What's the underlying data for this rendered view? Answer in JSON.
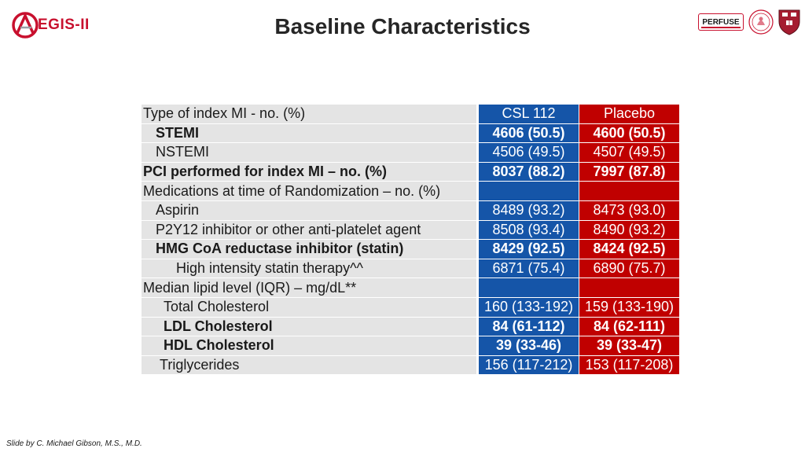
{
  "header": {
    "title": "Baseline Characteristics",
    "logo_left_text": "EGIS-II",
    "logo_perfuse_text": "PERFUSE"
  },
  "table": {
    "columns": [
      "CSL 112",
      "Placebo"
    ],
    "rows": [
      {
        "label": "Type of index MI - no. (%)",
        "csl": "",
        "placebo": ""
      },
      {
        "label": "STEMI",
        "csl": "4606 (50.5)",
        "placebo": "4600 (50.5)"
      },
      {
        "label": "NSTEMI",
        "csl": "4506 (49.5)",
        "placebo": "4507 (49.5)"
      },
      {
        "label": "PCI performed for index MI – no. (%)",
        "csl": "8037 (88.2)",
        "placebo": "7997 (87.8)"
      },
      {
        "label": "Medications at time of Randomization – no. (%)",
        "csl": "",
        "placebo": ""
      },
      {
        "label": "Aspirin",
        "csl": "8489 (93.2)",
        "placebo": "8473 (93.0)"
      },
      {
        "label": "P2Y12 inhibitor or other anti-platelet agent",
        "csl": "8508 (93.4)",
        "placebo": "8490 (93.2)"
      },
      {
        "label": "HMG CoA reductase inhibitor (statin)",
        "csl": "8429 (92.5)",
        "placebo": "8424 (92.5)"
      },
      {
        "label": "High intensity statin therapy^^",
        "csl": "6871 (75.4)",
        "placebo": "6890 (75.7)"
      },
      {
        "label": "Median lipid level (IQR) –  mg/dL**",
        "csl": "",
        "placebo": ""
      },
      {
        "label": "Total Cholesterol",
        "csl": "160 (133-192)",
        "placebo": "159 (133-190)"
      },
      {
        "label": "LDL Cholesterol",
        "csl": "84 (61-112)",
        "placebo": "84 (62-111)"
      },
      {
        "label": "HDL Cholesterol",
        "csl": "39 (33-46)",
        "placebo": "39 (33-47)"
      },
      {
        "label": "Triglycerides",
        "csl": "156 (117-212)",
        "placebo": "153 (117-208)"
      }
    ]
  },
  "footer": {
    "credit": "Slide by C. Michael Gibson, M.S., M.D."
  },
  "colors": {
    "csl": "#1555a8",
    "placebo": "#c00000",
    "label_bg": "#e4e4e4",
    "accent": "#c8102e"
  }
}
